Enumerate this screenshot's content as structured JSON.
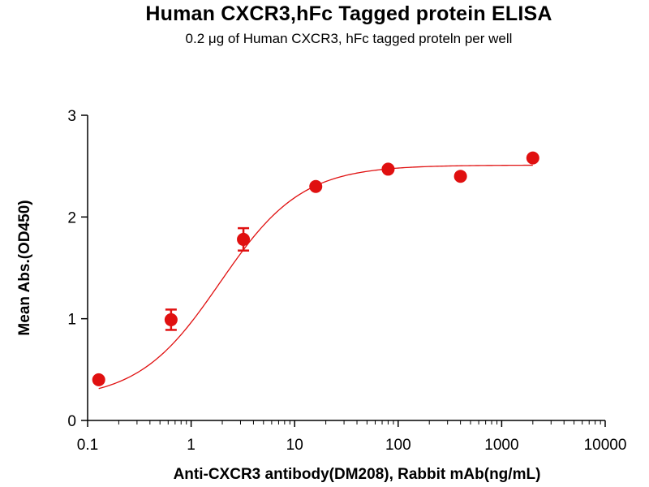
{
  "chart_data": {
    "type": "scatter",
    "title": "Human CXCR3,hFc Tagged protein ELISA",
    "subtitle": "0.2 μg of Human CXCR3, hFc tagged proteln per well",
    "xlabel": "Anti-CXCR3 antibody(DM208), Rabbit mAb(ng/mL)",
    "ylabel": "Mean Abs.(OD450)",
    "x_scale": "log",
    "xlim": [
      0.1,
      10000
    ],
    "ylim": [
      0,
      3
    ],
    "x_ticks": [
      "0.1",
      "1",
      "10",
      "100",
      "1000",
      "10000"
    ],
    "y_ticks": [
      "0",
      "1",
      "2",
      "3"
    ],
    "grid": false,
    "series": [
      {
        "color": "#e01010",
        "points": [
          {
            "x": 0.128,
            "y": 0.4,
            "err": 0.03
          },
          {
            "x": 0.64,
            "y": 0.99,
            "err": 0.1
          },
          {
            "x": 3.2,
            "y": 1.78,
            "err": 0.11
          },
          {
            "x": 16,
            "y": 2.3,
            "err": 0.03
          },
          {
            "x": 80,
            "y": 2.47,
            "err": 0.02
          },
          {
            "x": 400,
            "y": 2.4,
            "err": 0.02
          },
          {
            "x": 2000,
            "y": 2.58,
            "err": 0.02
          }
        ],
        "fit": {
          "model": "4PL",
          "bottom": 0.2,
          "top": 2.51,
          "ec50": 1.9,
          "hill": 1.1
        }
      }
    ]
  }
}
